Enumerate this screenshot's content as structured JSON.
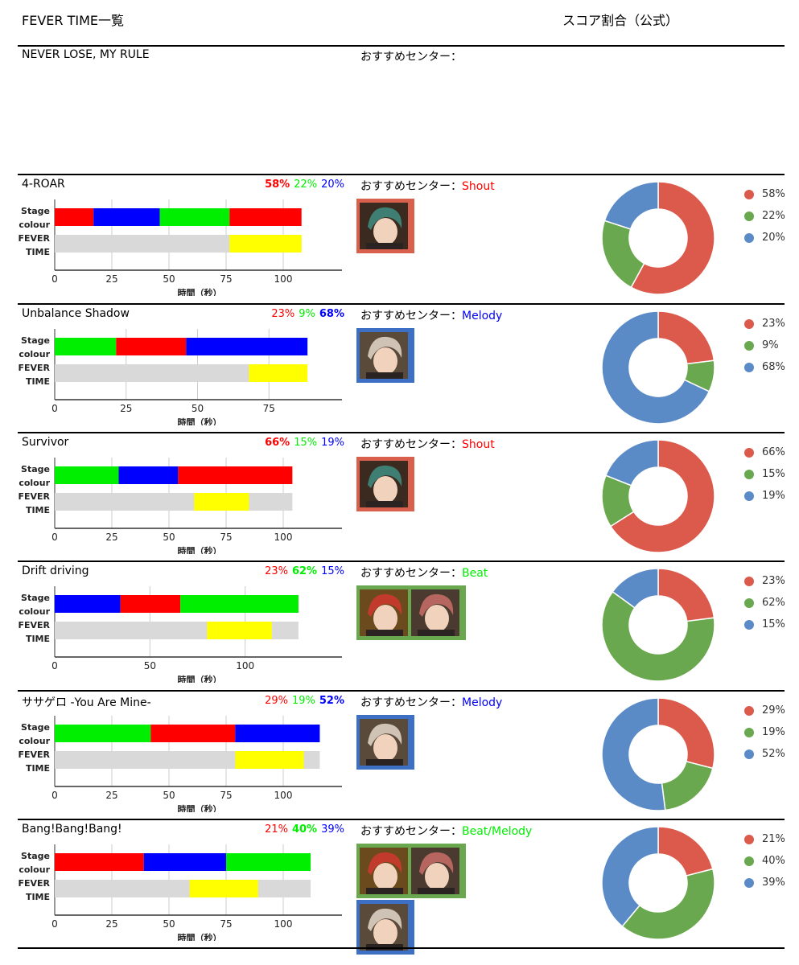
{
  "header": {
    "title": "FEVER TIME一覧",
    "score_title": "スコア割合（公式）"
  },
  "first_row": {
    "song": "NEVER LOSE, MY RULE",
    "rec_label": "おすすめセンター："
  },
  "colors": {
    "red": "#ff0000",
    "green": "#00ee00",
    "blue": "#0000ff",
    "yellow": "#ffff00",
    "gray": "#d9d9d9",
    "pie_red": "#dc5a4b",
    "pie_green": "#6aa84f",
    "pie_blue": "#5b8bc7",
    "frame_red": "#d9604d",
    "frame_green": "#6aa84f",
    "frame_blue": "#3d6fc4"
  },
  "labels": {
    "stage": "Stage",
    "colour": "colour",
    "fever": "FEVER",
    "time": "TIME",
    "xlabel": "時間（秒）",
    "rec": "おすすめセンター："
  },
  "songs": [
    {
      "title": "4-ROAR",
      "pcts": [
        "58%",
        "22%",
        "20%"
      ],
      "bold": 0,
      "center": "Shout",
      "center_color": "red",
      "portraits": [
        [
          {
            "char": "green-hair",
            "frame": "red"
          }
        ]
      ]
    },
    {
      "title": "Unbalance Shadow",
      "pcts": [
        "23%",
        "9%",
        "68%"
      ],
      "bold": 2,
      "center": "Melody",
      "center_color": "blue",
      "portraits": [
        [
          {
            "char": "white-hair",
            "frame": "blue"
          }
        ]
      ]
    },
    {
      "title": "Survivor",
      "pcts": [
        "66%",
        "15%",
        "19%"
      ],
      "bold": 0,
      "center": "Shout",
      "center_color": "red",
      "portraits": [
        [
          {
            "char": "green-hair",
            "frame": "red"
          }
        ]
      ]
    },
    {
      "title": "Drift driving",
      "pcts": [
        "23%",
        "62%",
        "15%"
      ],
      "bold": 1,
      "center": "Beat",
      "center_color": "green",
      "portraits": [
        [
          {
            "char": "red-hair",
            "frame": "green"
          },
          {
            "char": "pink-hair",
            "frame": "green"
          }
        ]
      ]
    },
    {
      "title": "ササゲロ -You Are Mine-",
      "pcts": [
        "29%",
        "19%",
        "52%"
      ],
      "bold": 2,
      "center": "Melody",
      "center_color": "blue",
      "portraits": [
        [
          {
            "char": "white-hair",
            "frame": "blue"
          }
        ]
      ]
    },
    {
      "title": "Bang!Bang!Bang!",
      "pcts": [
        "21%",
        "40%",
        "39%"
      ],
      "bold": 1,
      "center": "Beat/Melody",
      "center_color": "green",
      "portraits": [
        [
          {
            "char": "red-hair",
            "frame": "green"
          },
          {
            "char": "pink-hair",
            "frame": "green"
          }
        ],
        [
          {
            "char": "white-hair",
            "frame": "blue"
          }
        ]
      ]
    }
  ],
  "chart_data": [
    {
      "type": "bar",
      "title": "4-ROAR",
      "xlabel": "時間（秒）",
      "xlim": [
        0,
        125
      ],
      "ticks": [
        0,
        25,
        50,
        75,
        100
      ],
      "stage": [
        {
          "color": "red",
          "start": 0,
          "end": 17
        },
        {
          "color": "blue",
          "start": 17,
          "end": 46
        },
        {
          "color": "green",
          "start": 46,
          "end": 76.5
        },
        {
          "color": "red",
          "start": 76.5,
          "end": 108
        }
      ],
      "fever": {
        "total": 108,
        "start": 76.5,
        "end": 108
      },
      "pie": [
        58,
        22,
        20
      ]
    },
    {
      "type": "bar",
      "title": "Unbalance Shadow",
      "xlabel": "時間（秒）",
      "xlim": [
        0,
        100
      ],
      "ticks": [
        0,
        25,
        50,
        75
      ],
      "stage": [
        {
          "color": "green",
          "start": 0,
          "end": 21.5
        },
        {
          "color": "red",
          "start": 21.5,
          "end": 46
        },
        {
          "color": "blue",
          "start": 46,
          "end": 88.5
        }
      ],
      "fever": {
        "total": 88.5,
        "start": 68,
        "end": 88.5
      },
      "pie": [
        23,
        9,
        68
      ]
    },
    {
      "type": "bar",
      "title": "Survivor",
      "xlabel": "時間（秒）",
      "xlim": [
        0,
        125
      ],
      "ticks": [
        0,
        25,
        50,
        75,
        100
      ],
      "stage": [
        {
          "color": "green",
          "start": 0,
          "end": 28
        },
        {
          "color": "blue",
          "start": 28,
          "end": 54
        },
        {
          "color": "red",
          "start": 54,
          "end": 104
        }
      ],
      "fever": {
        "total": 104,
        "start": 61,
        "end": 85
      },
      "pie": [
        66,
        15,
        19
      ]
    },
    {
      "type": "bar",
      "title": "Drift driving",
      "xlabel": "時間（秒）",
      "xlim": [
        0,
        150
      ],
      "ticks": [
        0,
        50,
        100
      ],
      "stage": [
        {
          "color": "blue",
          "start": 0,
          "end": 34.5
        },
        {
          "color": "red",
          "start": 34.5,
          "end": 66
        },
        {
          "color": "green",
          "start": 66,
          "end": 128
        }
      ],
      "fever": {
        "total": 128,
        "start": 80,
        "end": 114
      },
      "pie": [
        23,
        62,
        15
      ]
    },
    {
      "type": "bar",
      "title": "ササゲロ -You Are Mine-",
      "xlabel": "時間（秒）",
      "xlim": [
        0,
        125
      ],
      "ticks": [
        0,
        25,
        50,
        75,
        100
      ],
      "stage": [
        {
          "color": "green",
          "start": 0,
          "end": 42
        },
        {
          "color": "red",
          "start": 42,
          "end": 79
        },
        {
          "color": "blue",
          "start": 79,
          "end": 116
        }
      ],
      "fever": {
        "total": 116,
        "start": 79,
        "end": 109
      },
      "pie": [
        29,
        19,
        52
      ]
    },
    {
      "type": "bar",
      "title": "Bang!Bang!Bang!",
      "xlabel": "時間（秒）",
      "xlim": [
        0,
        125
      ],
      "ticks": [
        0,
        25,
        50,
        75,
        100
      ],
      "stage": [
        {
          "color": "red",
          "start": 0,
          "end": 39
        },
        {
          "color": "blue",
          "start": 39,
          "end": 75
        },
        {
          "color": "green",
          "start": 75,
          "end": 112
        }
      ],
      "fever": {
        "total": 112,
        "start": 59,
        "end": 89
      },
      "pie": [
        21,
        40,
        39
      ]
    }
  ]
}
